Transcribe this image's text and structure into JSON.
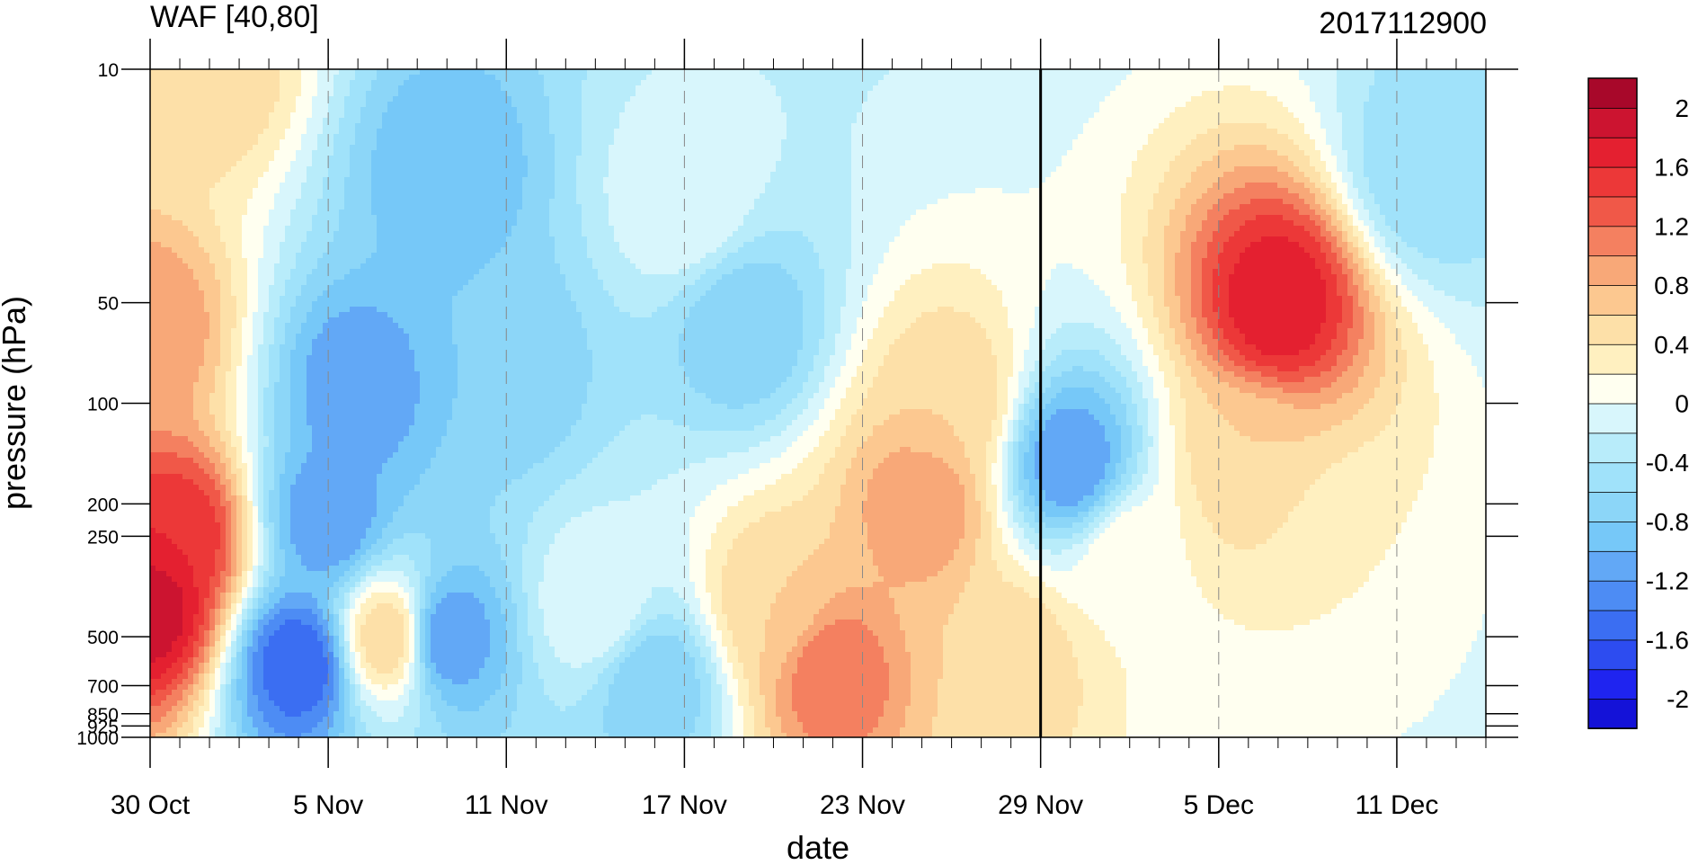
{
  "chart_data": {
    "type": "heatmap",
    "title_left": "WAF [40,80]",
    "title_right": "2017112900",
    "xlabel": "date",
    "ylabel": "pressure (hPa)",
    "y_scale": "log",
    "y_reversed": true,
    "ylim": [
      1000,
      10
    ],
    "xlim": [
      "2017-10-30",
      "2017-12-14"
    ],
    "x_ticks": [
      {
        "label": "30 Oct",
        "date": "2017-10-30"
      },
      {
        "label": "5 Nov",
        "date": "2017-11-05"
      },
      {
        "label": "11 Nov",
        "date": "2017-11-11"
      },
      {
        "label": "17 Nov",
        "date": "2017-11-17"
      },
      {
        "label": "23 Nov",
        "date": "2017-11-23"
      },
      {
        "label": "29 Nov",
        "date": "2017-11-29"
      },
      {
        "label": "5 Dec",
        "date": "2017-12-05"
      },
      {
        "label": "11 Dec",
        "date": "2017-12-11"
      }
    ],
    "y_ticks": [
      {
        "label": "10",
        "value": 10
      },
      {
        "label": "50",
        "value": 50
      },
      {
        "label": "100",
        "value": 100
      },
      {
        "label": "200",
        "value": 200
      },
      {
        "label": "250",
        "value": 250
      },
      {
        "label": "500",
        "value": 500
      },
      {
        "label": "700",
        "value": 700
      },
      {
        "label": "850",
        "value": 850
      },
      {
        "label": "925",
        "value": 925
      },
      {
        "label": "1000",
        "value": 1000
      }
    ],
    "marker_line_date": "2017-11-29",
    "grid": "dashed vertical lines at x ticks",
    "colorbar": {
      "placement": "right",
      "levels": [
        -2.2,
        -2.0,
        -1.8,
        -1.6,
        -1.4,
        -1.2,
        -1.0,
        -0.8,
        -0.6,
        -0.4,
        -0.2,
        0,
        0.2,
        0.4,
        0.6,
        0.8,
        1.0,
        1.2,
        1.4,
        1.6,
        1.8,
        2.0,
        2.2
      ],
      "colors": [
        "#1412d8",
        "#1f24f0",
        "#2d4cf0",
        "#3b6ef2",
        "#4d8cf4",
        "#62a8f6",
        "#76c8f8",
        "#8cd6f8",
        "#a0e2fa",
        "#b8ecfa",
        "#d8f6fc",
        "#fffff0",
        "#fff0c0",
        "#fde0a8",
        "#fcc890",
        "#f8a878",
        "#f48060",
        "#f05848",
        "#ec3838",
        "#e42030",
        "#cc1430",
        "#a8082a"
      ],
      "tick_labels": [
        {
          "label": "2",
          "value": 2.0
        },
        {
          "label": "1.6",
          "value": 1.6
        },
        {
          "label": "1.2",
          "value": 1.2
        },
        {
          "label": "0.8",
          "value": 0.8
        },
        {
          "label": "0.4",
          "value": 0.4
        },
        {
          "label": "0",
          "value": 0
        },
        {
          "label": "-0.4",
          "value": -0.4
        },
        {
          "label": "-0.8",
          "value": -0.8
        },
        {
          "label": "-1.2",
          "value": -1.2
        },
        {
          "label": "-1.6",
          "value": -1.6
        },
        {
          "label": "-2",
          "value": -2.0
        }
      ]
    },
    "features": [
      {
        "date": "2017-10-30",
        "p": 400,
        "value": 2.0
      },
      {
        "date": "2017-10-31",
        "p": 250,
        "value": 1.6
      },
      {
        "date": "2017-10-30",
        "p": 60,
        "value": 1.0
      },
      {
        "date": "2017-11-01",
        "p": 10,
        "value": 0.6
      },
      {
        "date": "2017-11-04",
        "p": 600,
        "value": -1.6
      },
      {
        "date": "2017-11-05",
        "p": 220,
        "value": -1.2
      },
      {
        "date": "2017-11-06",
        "p": 90,
        "value": -1.2
      },
      {
        "date": "2017-11-07",
        "p": 500,
        "value": 0.6
      },
      {
        "date": "2017-11-09",
        "p": 500,
        "value": -1.2
      },
      {
        "date": "2017-11-09",
        "p": 20,
        "value": -1.0
      },
      {
        "date": "2017-11-11",
        "p": 80,
        "value": -0.8
      },
      {
        "date": "2017-11-17",
        "p": 25,
        "value": 0
      },
      {
        "date": "2017-11-19",
        "p": 60,
        "value": -0.8
      },
      {
        "date": "2017-11-16",
        "p": 700,
        "value": -0.8
      },
      {
        "date": "2017-11-20",
        "p": 400,
        "value": 0.6
      },
      {
        "date": "2017-11-22",
        "p": 650,
        "value": 1.2
      },
      {
        "date": "2017-11-25",
        "p": 200,
        "value": 1.0
      },
      {
        "date": "2017-11-26",
        "p": 100,
        "value": 0.6
      },
      {
        "date": "2017-11-28",
        "p": 600,
        "value": 0.6
      },
      {
        "date": "2017-11-30",
        "p": 150,
        "value": -1.2
      },
      {
        "date": "2017-12-07",
        "p": 50,
        "value": 1.8
      },
      {
        "date": "2017-12-06",
        "p": 150,
        "value": 0.6
      },
      {
        "date": "2017-12-02",
        "p": 300,
        "value": 0.2
      },
      {
        "date": "2017-12-09",
        "p": 300,
        "value": 0.2
      },
      {
        "date": "2017-12-12",
        "p": 20,
        "value": -0.6
      },
      {
        "date": "2017-11-14",
        "p": 400,
        "value": 0
      }
    ],
    "background_value": -0.4
  }
}
